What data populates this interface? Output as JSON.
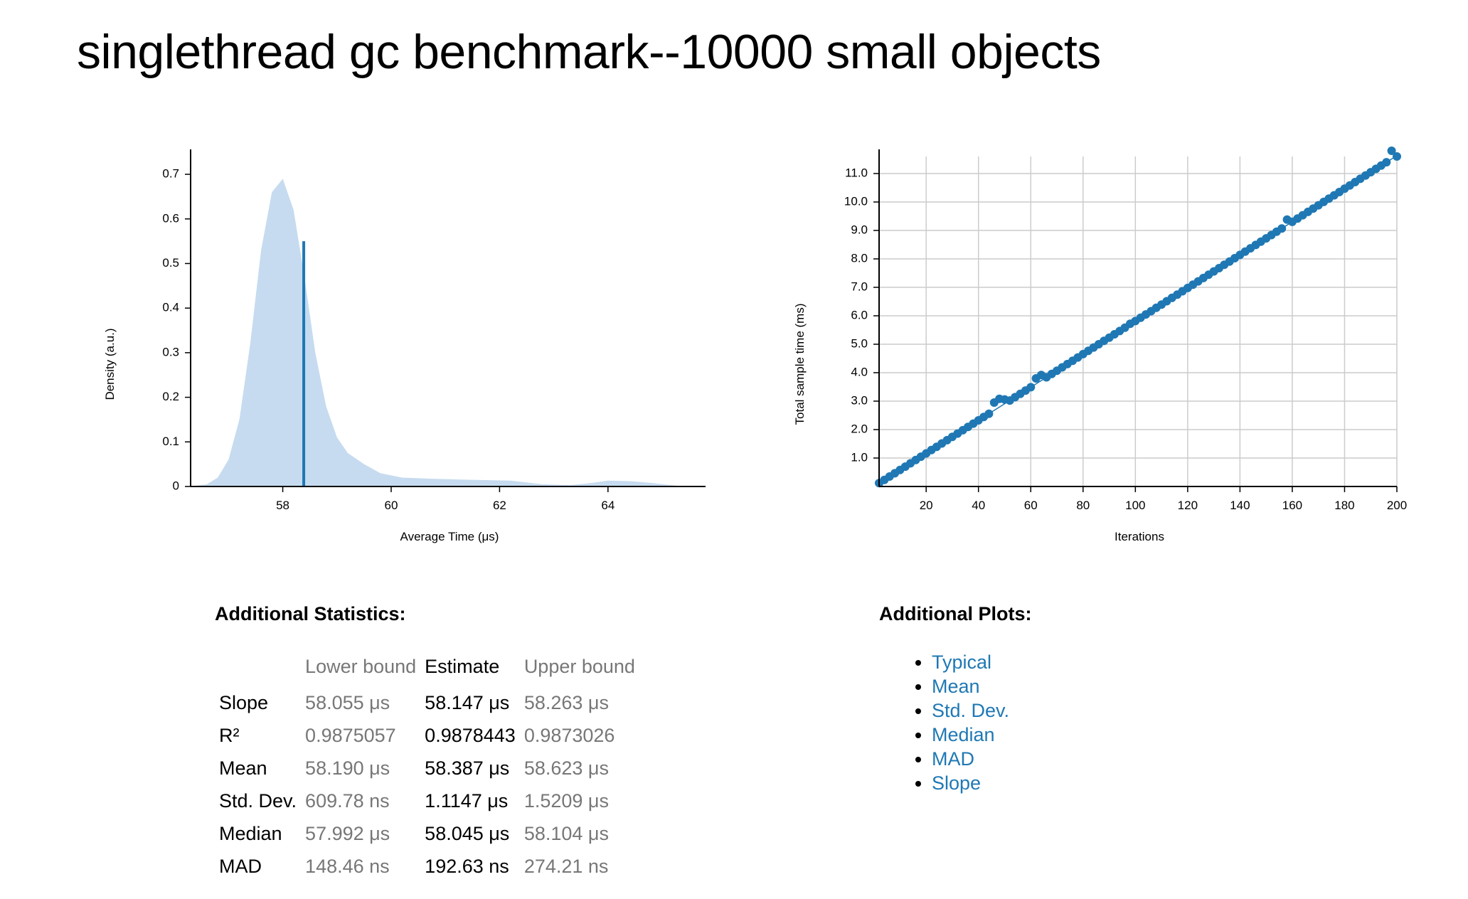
{
  "title": "singlethread gc benchmark--10000 small objects",
  "chart_data": [
    {
      "type": "area",
      "xlabel": "Average Time (μs)",
      "ylabel": "Density (a.u.)",
      "xlim": [
        56.3,
        65.8
      ],
      "ylim": [
        0,
        0.74
      ],
      "x_ticks": [
        "58",
        "60",
        "62",
        "64"
      ],
      "y_ticks": [
        "0",
        "0.1",
        "0.2",
        "0.3",
        "0.4",
        "0.5",
        "0.6",
        "0.7"
      ],
      "x": [
        56.3,
        56.6,
        56.8,
        57.0,
        57.2,
        57.4,
        57.6,
        57.8,
        58.0,
        58.2,
        58.4,
        58.6,
        58.8,
        59.0,
        59.2,
        59.5,
        59.8,
        60.2,
        60.8,
        61.5,
        62.2,
        62.8,
        63.3,
        63.7,
        64.0,
        64.4,
        64.8,
        65.1,
        65.4,
        65.8
      ],
      "y": [
        0.0,
        0.005,
        0.02,
        0.06,
        0.15,
        0.32,
        0.53,
        0.66,
        0.69,
        0.62,
        0.47,
        0.3,
        0.18,
        0.11,
        0.075,
        0.05,
        0.03,
        0.02,
        0.017,
        0.015,
        0.013,
        0.005,
        0.003,
        0.008,
        0.013,
        0.012,
        0.008,
        0.004,
        0.0,
        0.0
      ],
      "mean_line": {
        "x": 58.387,
        "y": 0.55
      },
      "colors": {
        "fill": "#c6dbef",
        "line": "#1f78b4"
      }
    },
    {
      "type": "scatter",
      "xlabel": "Iterations",
      "ylabel": "Total sample time (ms)",
      "xlim": [
        2,
        200
      ],
      "ylim": [
        0,
        11.6
      ],
      "x_ticks": [
        "20",
        "40",
        "60",
        "80",
        "100",
        "120",
        "140",
        "160",
        "180",
        "200"
      ],
      "y_ticks": [
        "1.0",
        "2.0",
        "3.0",
        "4.0",
        "5.0",
        "6.0",
        "7.0",
        "8.0",
        "9.0",
        "10.0",
        "11.0"
      ],
      "slope_ms_per_iter": 0.058147,
      "outliers": [
        {
          "iter": 46,
          "ms": 2.95
        },
        {
          "iter": 48,
          "ms": 3.08
        },
        {
          "iter": 50,
          "ms": 3.06
        },
        {
          "iter": 62,
          "ms": 3.8
        },
        {
          "iter": 64,
          "ms": 3.92
        },
        {
          "iter": 98,
          "ms": 5.72
        },
        {
          "iter": 158,
          "ms": 9.38
        },
        {
          "iter": 198,
          "ms": 11.8
        },
        {
          "iter": 200,
          "ms": 11.6
        }
      ],
      "grid": true,
      "colors": {
        "point": "#1f78b4",
        "line": "#1f78b4",
        "grid": "#cccccc"
      }
    }
  ],
  "stats": {
    "title": "Additional Statistics:",
    "headers": {
      "lower": "Lower bound",
      "estimate": "Estimate",
      "upper": "Upper bound"
    },
    "rows": [
      {
        "metric": "Slope",
        "lower": "58.055 μs",
        "estimate": "58.147 μs",
        "upper": "58.263 μs"
      },
      {
        "metric": "R²",
        "lower": "0.9875057",
        "estimate": "0.9878443",
        "upper": "0.9873026"
      },
      {
        "metric": "Mean",
        "lower": "58.190 μs",
        "estimate": "58.387 μs",
        "upper": "58.623 μs"
      },
      {
        "metric": "Std. Dev.",
        "lower": "609.78 ns",
        "estimate": "1.1147 μs",
        "upper": "1.5209 μs"
      },
      {
        "metric": "Median",
        "lower": "57.992 μs",
        "estimate": "58.045 μs",
        "upper": "58.104 μs"
      },
      {
        "metric": "MAD",
        "lower": "148.46 ns",
        "estimate": "192.63 ns",
        "upper": "274.21 ns"
      }
    ]
  },
  "plots": {
    "title": "Additional Plots:",
    "links": [
      "Typical",
      "Mean",
      "Std. Dev.",
      "Median",
      "MAD",
      "Slope"
    ]
  }
}
